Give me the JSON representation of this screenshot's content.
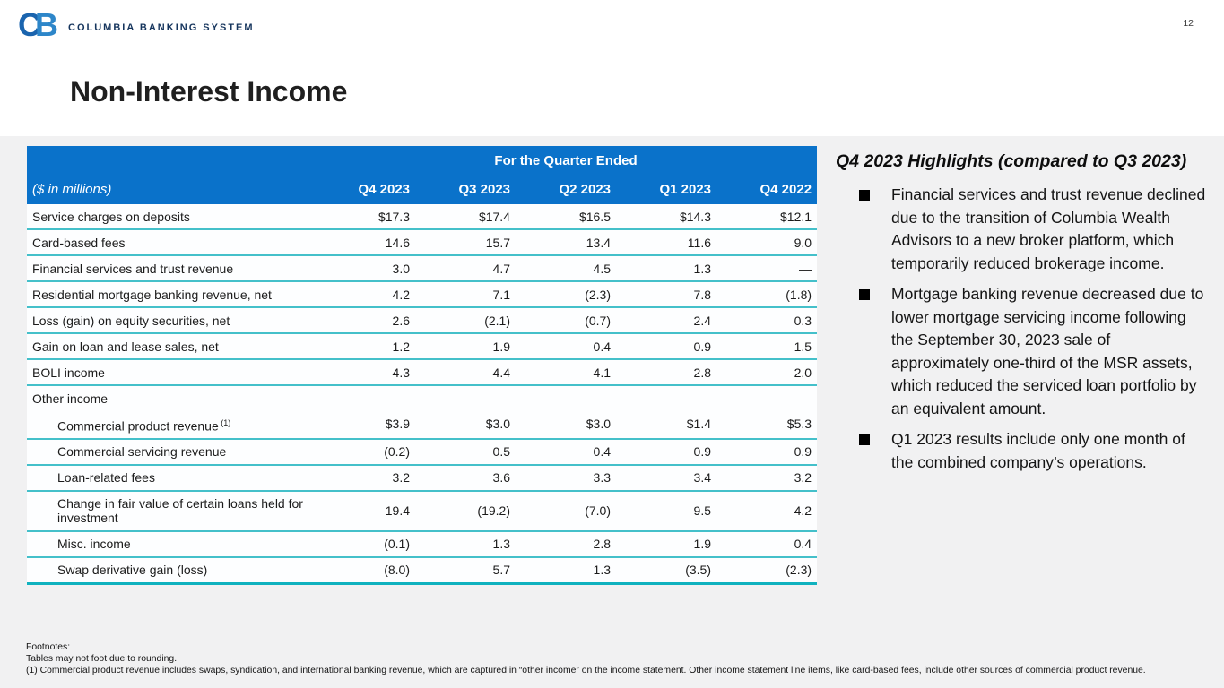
{
  "page_number": "12",
  "brand": {
    "monogram_c": "C",
    "monogram_b": "B",
    "name": "COLUMBIA BANKING SYSTEM"
  },
  "slide_title": "Non-Interest Income",
  "table": {
    "span_header": "For the Quarter Ended",
    "unit_label": "($ in millions)",
    "columns": [
      "Q4 2023",
      "Q3 2023",
      "Q2 2023",
      "Q1 2023",
      "Q4 2022"
    ],
    "rows": [
      {
        "label": "Service charges on deposits",
        "values": [
          "$17.3",
          "$17.4",
          "$16.5",
          "$14.3",
          "$12.1"
        ]
      },
      {
        "label": "Card-based fees",
        "values": [
          "14.6",
          "15.7",
          "13.4",
          "11.6",
          "9.0"
        ]
      },
      {
        "label": "Financial services and trust revenue",
        "values": [
          "3.0",
          "4.7",
          "4.5",
          "1.3",
          "—"
        ]
      },
      {
        "label": "Residential mortgage banking revenue, net",
        "values": [
          "4.2",
          "7.1",
          "(2.3)",
          "7.8",
          "(1.8)"
        ]
      },
      {
        "label": "Loss (gain) on equity securities, net",
        "values": [
          "2.6",
          "(2.1)",
          "(0.7)",
          "2.4",
          "0.3"
        ]
      },
      {
        "label": "Gain on loan and lease sales, net",
        "values": [
          "1.2",
          "1.9",
          "0.4",
          "0.9",
          "1.5"
        ]
      },
      {
        "label": "BOLI income",
        "values": [
          "4.3",
          "4.4",
          "4.1",
          "2.8",
          "2.0"
        ]
      },
      {
        "label": "Other income",
        "section": true,
        "values": [
          "",
          "",
          "",
          "",
          ""
        ]
      },
      {
        "label": "Commercial product revenue",
        "sup": "(1)",
        "indent": true,
        "values": [
          "$3.9",
          "$3.0",
          "$3.0",
          "$1.4",
          "$5.3"
        ]
      },
      {
        "label": "Commercial servicing revenue",
        "indent": true,
        "values": [
          "(0.2)",
          "0.5",
          "0.4",
          "0.9",
          "0.9"
        ]
      },
      {
        "label": "Loan-related fees",
        "indent": true,
        "values": [
          "3.2",
          "3.6",
          "3.3",
          "3.4",
          "3.2"
        ]
      },
      {
        "label": "Change in fair value of certain loans held for investment",
        "indent": true,
        "values": [
          "19.4",
          "(19.2)",
          "(7.0)",
          "9.5",
          "4.2"
        ]
      },
      {
        "label": "Misc. income",
        "indent": true,
        "values": [
          "(0.1)",
          "1.3",
          "2.8",
          "1.9",
          "0.4"
        ]
      },
      {
        "label": "Swap derivative gain (loss)",
        "indent": true,
        "values": [
          "(8.0)",
          "5.7",
          "1.3",
          "(3.5)",
          "(2.3)"
        ]
      }
    ]
  },
  "highlights": {
    "title": "Q4 2023 Highlights (compared to Q3 2023)",
    "bullets": [
      "Financial services and trust revenue declined due to the transition of Columbia Wealth Advisors to a new broker platform, which temporarily reduced brokerage income.",
      "Mortgage banking revenue decreased due to lower mortgage servicing income following the September 30, 2023 sale of approximately one-third of the MSR assets, which reduced the serviced loan portfolio by an equivalent amount.",
      "Q1 2023 results include only one month of the combined company’s operations."
    ]
  },
  "footnotes": {
    "heading": "Footnotes:",
    "lines": [
      "Tables may not foot due to rounding.",
      "(1) Commercial product revenue includes swaps, syndication, and international banking revenue, which are captured in “other income” on the income statement. Other income statement line items, like card-based fees, include other sources of commercial product revenue."
    ]
  },
  "colors": {
    "header_blue": "#0a72ca",
    "teal_divider": "#44c0ca",
    "teal_bottom_border": "#10b2bf",
    "logo_c_blue": "#1a64ae",
    "logo_b_blue": "#2d86c9",
    "brand_navy": "#16355d",
    "background_gray": "#f1f1f2"
  }
}
